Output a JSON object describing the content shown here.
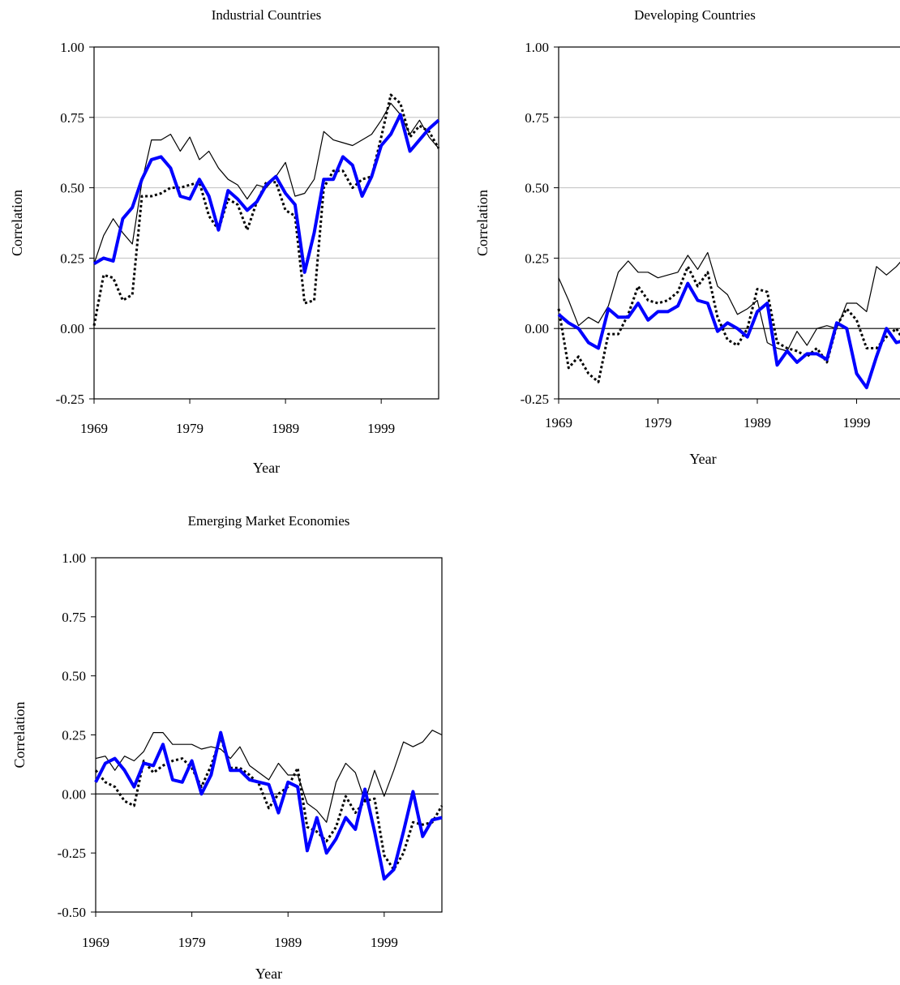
{
  "chart_data": [
    {
      "type": "line",
      "title": "Industrial Countries",
      "xlabel": "Year",
      "ylabel": "Correlation",
      "xlim": [
        1969,
        2005
      ],
      "ylim": [
        -0.25,
        1.0
      ],
      "x_ticks": [
        1969,
        1979,
        1989,
        1999
      ],
      "y_ticks": [
        -0.25,
        0.0,
        0.25,
        0.5,
        0.75,
        1.0
      ],
      "y_tick_labels": [
        "-0.25",
        "0.00",
        "0.25",
        "0.50",
        "0.75",
        "1.00"
      ],
      "grid": true,
      "legend": "none",
      "x": [
        1969,
        1970,
        1971,
        1972,
        1973,
        1974,
        1975,
        1976,
        1977,
        1978,
        1979,
        1980,
        1981,
        1982,
        1983,
        1984,
        1985,
        1986,
        1987,
        1988,
        1989,
        1990,
        1991,
        1992,
        1993,
        1994,
        1995,
        1996,
        1997,
        1998,
        1999,
        2000,
        2001,
        2002,
        2003,
        2004,
        2005
      ],
      "series": [
        {
          "style": "thin-solid",
          "color": "#000000",
          "values": [
            0.23,
            0.33,
            0.39,
            0.34,
            0.3,
            0.52,
            0.67,
            0.67,
            0.69,
            0.63,
            0.68,
            0.6,
            0.63,
            0.57,
            0.53,
            0.51,
            0.46,
            0.51,
            0.5,
            0.54,
            0.59,
            0.47,
            0.48,
            0.53,
            0.7,
            0.67,
            0.66,
            0.65,
            0.67,
            0.69,
            0.74,
            0.8,
            0.76,
            0.69,
            0.74,
            0.68,
            0.64
          ]
        },
        {
          "style": "dotted",
          "color": "#000000",
          "values": [
            0.01,
            0.19,
            0.18,
            0.1,
            0.12,
            0.47,
            0.47,
            0.48,
            0.5,
            0.5,
            0.51,
            0.52,
            0.4,
            0.35,
            0.46,
            0.44,
            0.35,
            0.45,
            0.52,
            0.52,
            0.42,
            0.4,
            0.09,
            0.1,
            0.5,
            0.56,
            0.56,
            0.5,
            0.53,
            0.54,
            0.68,
            0.83,
            0.8,
            0.68,
            0.72,
            0.7,
            0.64
          ]
        },
        {
          "style": "thick-solid",
          "color": "#0000ff",
          "values": [
            0.23,
            0.25,
            0.24,
            0.39,
            0.43,
            0.53,
            0.6,
            0.61,
            0.57,
            0.47,
            0.46,
            0.53,
            0.47,
            0.35,
            0.49,
            0.46,
            0.42,
            0.45,
            0.51,
            0.54,
            0.48,
            0.44,
            0.2,
            0.34,
            0.53,
            0.53,
            0.61,
            0.58,
            0.47,
            0.54,
            0.65,
            0.69,
            0.76,
            0.63,
            0.67,
            0.71,
            0.74
          ]
        }
      ]
    },
    {
      "type": "line",
      "title": "Developing Countries",
      "xlabel": "Year",
      "ylabel": "Correlation",
      "xlim": [
        1969,
        2005
      ],
      "ylim": [
        -0.25,
        1.0
      ],
      "x_ticks": [
        1969,
        1979,
        1989,
        1999
      ],
      "y_ticks": [
        -0.25,
        0.0,
        0.25,
        0.5,
        0.75,
        1.0
      ],
      "y_tick_labels": [
        "-0.25",
        "0.00",
        "0.25",
        "0.50",
        "0.75",
        "1.00"
      ],
      "grid": true,
      "legend": "none",
      "x": [
        1969,
        1970,
        1971,
        1972,
        1973,
        1974,
        1975,
        1976,
        1977,
        1978,
        1979,
        1980,
        1981,
        1982,
        1983,
        1984,
        1985,
        1986,
        1987,
        1988,
        1989,
        1990,
        1991,
        1992,
        1993,
        1994,
        1995,
        1996,
        1997,
        1998,
        1999,
        2000,
        2001,
        2002,
        2003,
        2004,
        2005
      ],
      "series": [
        {
          "style": "thin-solid",
          "color": "#000000",
          "values": [
            0.18,
            0.1,
            0.01,
            0.04,
            0.02,
            0.08,
            0.2,
            0.24,
            0.2,
            0.2,
            0.18,
            0.19,
            0.2,
            0.26,
            0.21,
            0.27,
            0.15,
            0.12,
            0.05,
            0.07,
            0.1,
            -0.05,
            -0.07,
            -0.08,
            -0.01,
            -0.06,
            0.0,
            0.01,
            0.0,
            0.09,
            0.09,
            0.06,
            0.22,
            0.19,
            0.22,
            0.26,
            0.28
          ]
        },
        {
          "style": "dotted",
          "color": "#000000",
          "values": [
            0.07,
            -0.14,
            -0.1,
            -0.16,
            -0.19,
            -0.02,
            -0.02,
            0.05,
            0.15,
            0.1,
            0.09,
            0.1,
            0.13,
            0.22,
            0.15,
            0.2,
            0.04,
            -0.04,
            -0.06,
            0.0,
            0.14,
            0.13,
            -0.05,
            -0.07,
            -0.08,
            -0.1,
            -0.07,
            -0.12,
            0.01,
            0.07,
            0.03,
            -0.07,
            -0.07,
            -0.03,
            0.0,
            -0.06,
            -0.04
          ]
        },
        {
          "style": "thick-solid",
          "color": "#0000ff",
          "values": [
            0.05,
            0.02,
            0.0,
            -0.05,
            -0.07,
            0.07,
            0.04,
            0.04,
            0.09,
            0.03,
            0.06,
            0.06,
            0.08,
            0.16,
            0.1,
            0.09,
            -0.01,
            0.02,
            0.0,
            -0.03,
            0.06,
            0.09,
            -0.13,
            -0.08,
            -0.12,
            -0.09,
            -0.09,
            -0.11,
            0.02,
            0.0,
            -0.16,
            -0.21,
            -0.1,
            0.0,
            -0.05,
            -0.04,
            -0.04
          ]
        }
      ]
    },
    {
      "type": "line",
      "title": "Emerging Market Economies",
      "xlabel": "Year",
      "ylabel": "Correlation",
      "xlim": [
        1969,
        2005
      ],
      "ylim": [
        -0.5,
        1.0
      ],
      "x_ticks": [
        1969,
        1979,
        1989,
        1999
      ],
      "y_ticks": [
        -0.5,
        -0.25,
        0.0,
        0.25,
        0.5,
        0.75,
        1.0
      ],
      "y_tick_labels": [
        "-0.50",
        "-0.25",
        "0.00",
        "0.25",
        "0.50",
        "0.75",
        "1.00"
      ],
      "grid": false,
      "legend": "none",
      "x": [
        1969,
        1970,
        1971,
        1972,
        1973,
        1974,
        1975,
        1976,
        1977,
        1978,
        1979,
        1980,
        1981,
        1982,
        1983,
        1984,
        1985,
        1986,
        1987,
        1988,
        1989,
        1990,
        1991,
        1992,
        1993,
        1994,
        1995,
        1996,
        1997,
        1998,
        1999,
        2000,
        2001,
        2002,
        2003,
        2004,
        2005
      ],
      "series": [
        {
          "style": "thin-solid",
          "color": "#000000",
          "values": [
            0.15,
            0.16,
            0.1,
            0.16,
            0.14,
            0.18,
            0.26,
            0.26,
            0.21,
            0.21,
            0.21,
            0.19,
            0.2,
            0.19,
            0.15,
            0.2,
            0.12,
            0.09,
            0.06,
            0.13,
            0.08,
            0.08,
            -0.04,
            -0.07,
            -0.12,
            0.05,
            0.13,
            0.09,
            -0.03,
            0.1,
            -0.01,
            0.1,
            0.22,
            0.2,
            0.22,
            0.27,
            0.25
          ]
        },
        {
          "style": "dotted",
          "color": "#000000",
          "values": [
            0.1,
            0.05,
            0.03,
            -0.03,
            -0.05,
            0.14,
            0.09,
            0.12,
            0.14,
            0.15,
            0.11,
            0.03,
            0.12,
            0.24,
            0.11,
            0.11,
            0.08,
            0.04,
            -0.06,
            0.0,
            0.03,
            0.11,
            -0.14,
            -0.16,
            -0.2,
            -0.14,
            -0.01,
            -0.08,
            -0.03,
            -0.02,
            -0.26,
            -0.32,
            -0.25,
            -0.12,
            -0.13,
            -0.12,
            -0.05
          ]
        },
        {
          "style": "thick-solid",
          "color": "#0000ff",
          "values": [
            0.05,
            0.13,
            0.15,
            0.1,
            0.03,
            0.13,
            0.12,
            0.21,
            0.06,
            0.05,
            0.14,
            0.0,
            0.08,
            0.26,
            0.1,
            0.1,
            0.06,
            0.05,
            0.04,
            -0.08,
            0.05,
            0.03,
            -0.24,
            -0.1,
            -0.25,
            -0.19,
            -0.1,
            -0.15,
            0.02,
            -0.16,
            -0.36,
            -0.32,
            -0.16,
            0.01,
            -0.18,
            -0.11,
            -0.1
          ]
        }
      ]
    }
  ]
}
